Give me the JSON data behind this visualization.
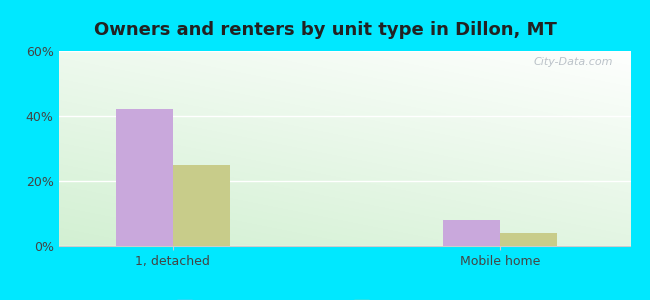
{
  "title": "Owners and renters by unit type in Dillon, MT",
  "categories": [
    "1, detached",
    "Mobile home"
  ],
  "owner_values": [
    42,
    8
  ],
  "renter_values": [
    25,
    4
  ],
  "owner_color": "#c9a8dc",
  "renter_color": "#c8cc8a",
  "ylim": [
    0,
    60
  ],
  "yticks": [
    0,
    20,
    40,
    60
  ],
  "ytick_labels": [
    "0%",
    "20%",
    "40%",
    "60%"
  ],
  "background_outer": "#00e8ff",
  "bar_width": 0.35,
  "group_positions": [
    1.0,
    3.0
  ],
  "watermark": "City-Data.com",
  "title_fontsize": 13,
  "tick_fontsize": 9,
  "legend_fontsize": 9
}
